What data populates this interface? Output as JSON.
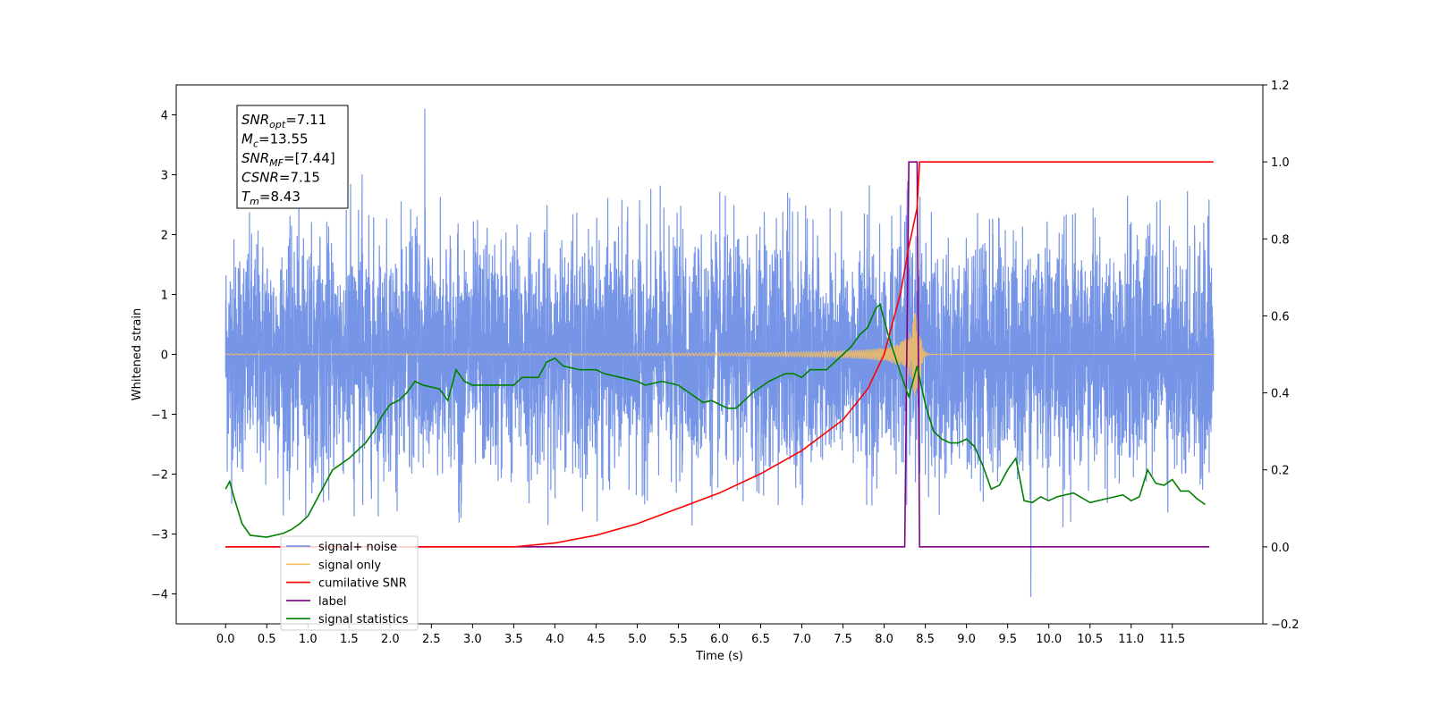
{
  "chart_data": {
    "type": "line",
    "xlabel": "Time (s)",
    "ylabel": "Whitened strain",
    "xlim": [
      -0.6,
      12.6
    ],
    "ylim": [
      -4.5,
      4.5
    ],
    "y2lim": [
      -0.2,
      1.2
    ],
    "x_ticks": [
      0.0,
      0.5,
      1.0,
      1.5,
      2.0,
      2.5,
      3.0,
      3.5,
      4.0,
      4.5,
      5.0,
      5.5,
      6.0,
      6.5,
      7.0,
      7.5,
      8.0,
      8.5,
      9.0,
      9.5,
      10.0,
      10.5,
      11.0,
      11.5
    ],
    "x_tick_labels": [
      "0.0",
      "0.5",
      "1.0",
      "1.5",
      "2.0",
      "2.5",
      "3.0",
      "3.5",
      "4.0",
      "4.5",
      "5.0",
      "5.5",
      "6.0",
      "6.5",
      "7.0",
      "7.5",
      "8.0",
      "8.5",
      "9.0",
      "9.5",
      "10.0",
      "10.5",
      "11.0",
      "11.5"
    ],
    "y_ticks": [
      -4,
      -3,
      -2,
      -1,
      0,
      1,
      2,
      3,
      4
    ],
    "y_tick_labels": [
      "−4",
      "−3",
      "−2",
      "−1",
      "0",
      "1",
      "2",
      "3",
      "4"
    ],
    "y2_ticks": [
      -0.2,
      0.0,
      0.2,
      0.4,
      0.6,
      0.8,
      1.0,
      1.2
    ],
    "y2_tick_labels": [
      "−0.2",
      "0.0",
      "0.2",
      "0.4",
      "0.6",
      "0.8",
      "1.0",
      "1.2"
    ],
    "legend": {
      "location": "lower-left",
      "entries": [
        {
          "label": "signal+ noise",
          "color": "#6f8fe5"
        },
        {
          "label": "signal only",
          "color": "#f5bd5e"
        },
        {
          "label": "cumilative SNR",
          "color": "#ff0000"
        },
        {
          "label": "label",
          "color": "#800080"
        },
        {
          "label": "signal statistics",
          "color": "#008000"
        }
      ]
    },
    "annotation": {
      "snr_opt": {
        "base": "SNR",
        "sub": "opt",
        "value": "=7.11"
      },
      "mc": {
        "base": "M",
        "sub": "c",
        "value": "=13.55"
      },
      "snr_mf": {
        "base": "SNR",
        "sub": "MF",
        "value": "=[7.44]"
      },
      "csnr": {
        "base": "CSNR",
        "sub": "",
        "value": "=7.15"
      },
      "tm": {
        "base": "T",
        "sub": "m",
        "value": "=8.43"
      }
    },
    "series": [
      {
        "name": "signal+ noise",
        "axis": "left",
        "kind": "noise",
        "color": "#6f8fe5",
        "x_range": [
          0.0,
          12.0
        ],
        "typical_range": [
          -2.5,
          2.5
        ],
        "extremes": {
          "max": 4.1,
          "min": -4.05
        }
      },
      {
        "name": "signal only",
        "axis": "left",
        "kind": "chirp",
        "color": "#f5bd5e",
        "x_range": [
          0.0,
          12.0
        ],
        "merger_time": 8.43,
        "peak_amplitude": 0.7
      },
      {
        "name": "cumilative SNR",
        "axis": "right",
        "color": "#ff0000",
        "x": [
          0.0,
          3.0,
          3.5,
          4.0,
          4.5,
          5.0,
          5.5,
          6.0,
          6.5,
          7.0,
          7.5,
          7.8,
          8.0,
          8.2,
          8.3,
          8.4,
          8.43,
          12.0
        ],
        "y": [
          0.0,
          0.0,
          0.0,
          0.01,
          0.03,
          0.06,
          0.1,
          0.14,
          0.19,
          0.25,
          0.33,
          0.41,
          0.5,
          0.66,
          0.78,
          0.88,
          1.0,
          1.0
        ]
      },
      {
        "name": "label",
        "axis": "right",
        "color": "#800080",
        "x": [
          0.0,
          8.25,
          8.3,
          8.35,
          8.4,
          8.43,
          11.95
        ],
        "y": [
          0.0,
          0.0,
          1.0,
          1.0,
          1.0,
          0.0,
          0.0
        ]
      },
      {
        "name": "signal statistics",
        "axis": "right",
        "color": "#008000",
        "x": [
          0.0,
          0.05,
          0.1,
          0.2,
          0.3,
          0.5,
          0.7,
          0.8,
          0.9,
          1.0,
          1.1,
          1.3,
          1.5,
          1.7,
          1.8,
          1.9,
          2.0,
          2.1,
          2.2,
          2.3,
          2.4,
          2.6,
          2.7,
          2.8,
          2.9,
          3.0,
          3.1,
          3.3,
          3.5,
          3.6,
          3.8,
          3.9,
          4.0,
          4.1,
          4.3,
          4.5,
          4.6,
          4.8,
          5.0,
          5.1,
          5.3,
          5.5,
          5.7,
          5.8,
          5.9,
          6.0,
          6.1,
          6.2,
          6.4,
          6.6,
          6.8,
          6.9,
          7.0,
          7.1,
          7.3,
          7.5,
          7.6,
          7.7,
          7.8,
          7.9,
          7.95,
          8.05,
          8.2,
          8.3,
          8.4,
          8.5,
          8.6,
          8.7,
          8.8,
          8.9,
          9.0,
          9.1,
          9.2,
          9.3,
          9.4,
          9.5,
          9.6,
          9.7,
          9.8,
          9.9,
          10.0,
          10.1,
          10.3,
          10.5,
          10.7,
          10.9,
          11.0,
          11.1,
          11.2,
          11.3,
          11.4,
          11.5,
          11.6,
          11.7,
          11.8,
          11.9
        ],
        "y": [
          0.15,
          0.17,
          0.13,
          0.06,
          0.03,
          0.025,
          0.035,
          0.045,
          0.06,
          0.08,
          0.12,
          0.2,
          0.23,
          0.27,
          0.3,
          0.34,
          0.37,
          0.38,
          0.4,
          0.43,
          0.42,
          0.41,
          0.38,
          0.46,
          0.43,
          0.42,
          0.42,
          0.42,
          0.42,
          0.44,
          0.44,
          0.48,
          0.49,
          0.47,
          0.46,
          0.46,
          0.45,
          0.44,
          0.43,
          0.42,
          0.43,
          0.42,
          0.39,
          0.375,
          0.38,
          0.37,
          0.36,
          0.36,
          0.4,
          0.43,
          0.45,
          0.45,
          0.44,
          0.46,
          0.46,
          0.5,
          0.52,
          0.55,
          0.57,
          0.62,
          0.63,
          0.55,
          0.45,
          0.39,
          0.47,
          0.37,
          0.3,
          0.28,
          0.27,
          0.27,
          0.28,
          0.26,
          0.21,
          0.15,
          0.16,
          0.2,
          0.23,
          0.12,
          0.115,
          0.13,
          0.12,
          0.13,
          0.14,
          0.115,
          0.125,
          0.135,
          0.12,
          0.13,
          0.2,
          0.165,
          0.16,
          0.175,
          0.145,
          0.145,
          0.125,
          0.11
        ]
      }
    ]
  }
}
